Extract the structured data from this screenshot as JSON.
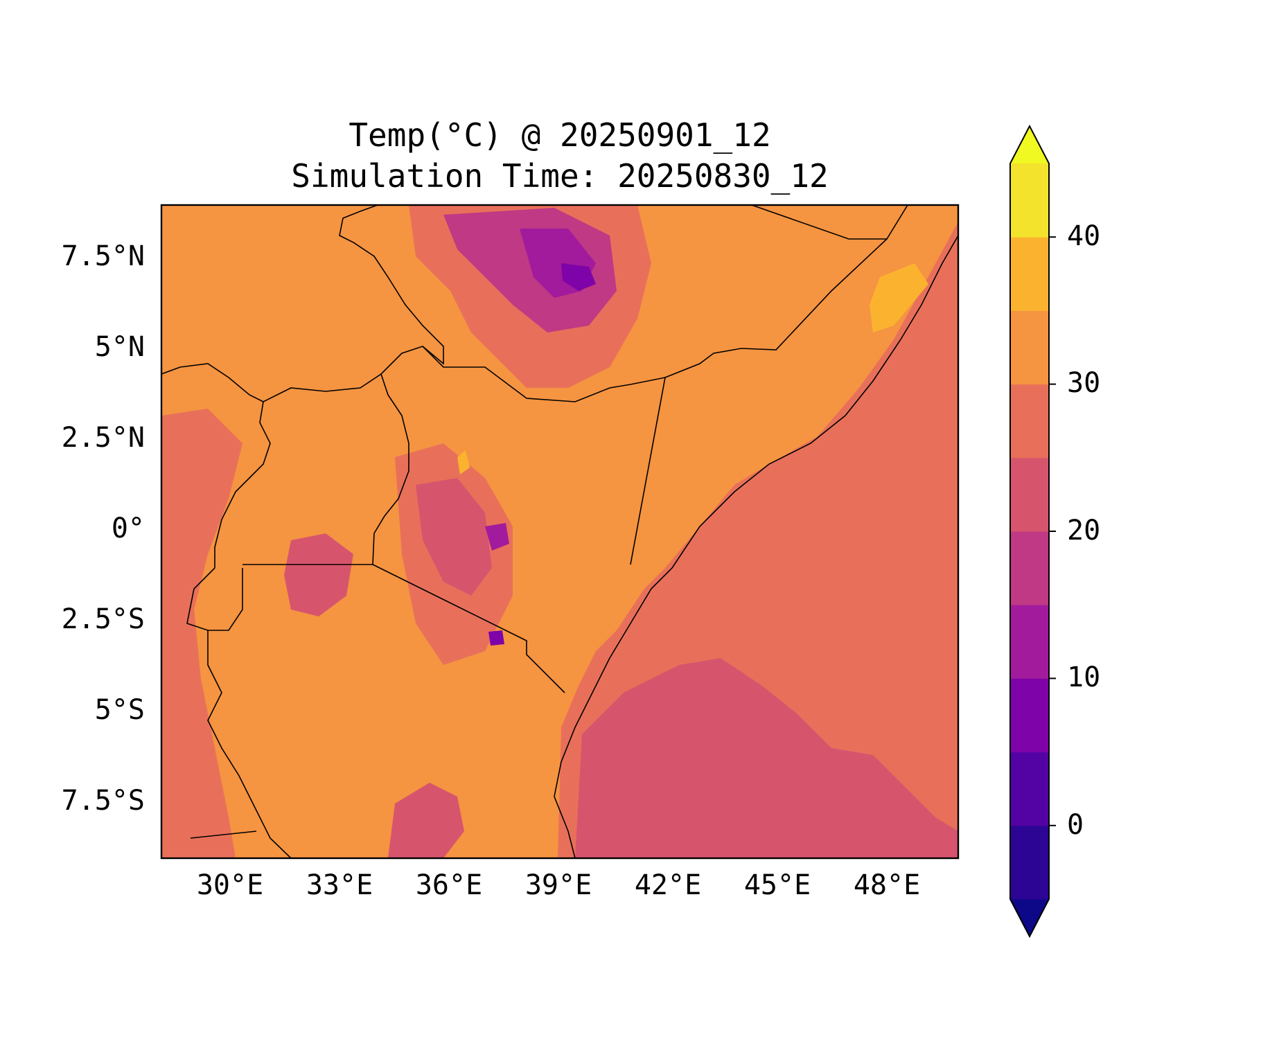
{
  "title_line1": "Temp(°C) @ 20250901_12",
  "title_line2": "Simulation Time: 20250830_12",
  "map": {
    "type": "filled-contour map",
    "lon_range": [
      28.3,
      50.0
    ],
    "lat_range": [
      -9.0,
      9.0
    ],
    "x_ticks": [
      "30°E",
      "33°E",
      "36°E",
      "39°E",
      "42°E",
      "45°E",
      "48°E"
    ],
    "y_ticks": [
      "7.5°N",
      "5°N",
      "2.5°N",
      "0°",
      "2.5°S",
      "5°S",
      "7.5°S"
    ],
    "background_color": "#f59441"
  },
  "colorbar": {
    "ticks": [
      "0",
      "10",
      "20",
      "30",
      "40"
    ],
    "levels": [
      -5,
      0,
      5,
      10,
      15,
      20,
      25,
      30,
      35,
      40,
      45
    ],
    "colors": [
      "#0d0887",
      "#2c0594",
      "#5302a3",
      "#7e03a8",
      "#a21b9c",
      "#bf3984",
      "#d6556d",
      "#e8705a",
      "#f59441",
      "#fbb32f",
      "#f3e32c",
      "#f0f921"
    ],
    "extend": "both",
    "colormap": "plasma"
  }
}
